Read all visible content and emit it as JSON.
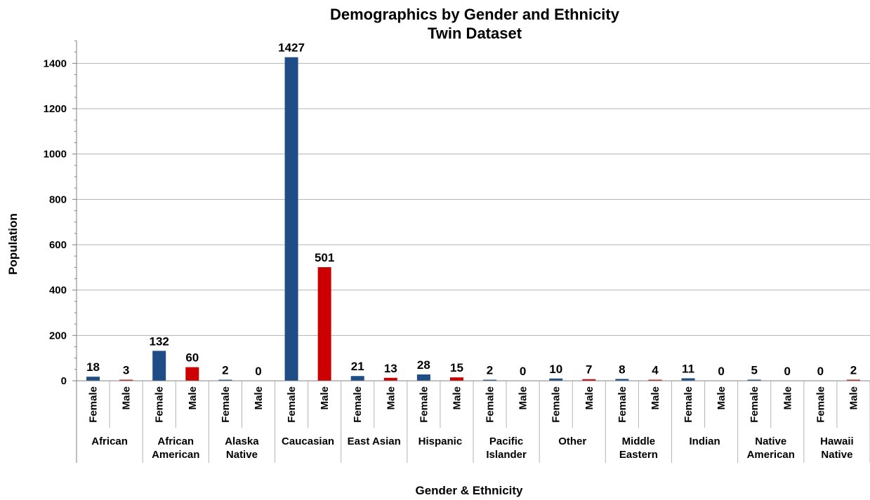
{
  "chart_data": {
    "type": "bar",
    "title": "Demographics by Gender and Ethnicity",
    "subtitle": "Twin Dataset",
    "xlabel": "Gender & Ethnicity",
    "ylabel": "Population",
    "ylim": [
      0,
      1500
    ],
    "yticks": [
      0,
      200,
      400,
      600,
      800,
      1000,
      1200,
      1400
    ],
    "grid": true,
    "legend": "none",
    "colors": {
      "Female": "#1f4e86",
      "Male": "#cc0000"
    },
    "groups": [
      {
        "name": [
          "African"
        ],
        "bars": [
          {
            "label": "Female",
            "value": 18
          },
          {
            "label": "Male",
            "value": 3
          }
        ]
      },
      {
        "name": [
          "African",
          "American"
        ],
        "bars": [
          {
            "label": "Female",
            "value": 132
          },
          {
            "label": "Male",
            "value": 60
          }
        ]
      },
      {
        "name": [
          "Alaska",
          "Native"
        ],
        "bars": [
          {
            "label": "Female",
            "value": 2
          },
          {
            "label": "Male",
            "value": 0
          }
        ]
      },
      {
        "name": [
          "Caucasian"
        ],
        "bars": [
          {
            "label": "Female",
            "value": 1427
          },
          {
            "label": "Male",
            "value": 501
          }
        ]
      },
      {
        "name": [
          "East Asian"
        ],
        "bars": [
          {
            "label": "Female",
            "value": 21
          },
          {
            "label": "Male",
            "value": 13
          }
        ]
      },
      {
        "name": [
          "Hispanic"
        ],
        "bars": [
          {
            "label": "Female",
            "value": 28
          },
          {
            "label": "Male",
            "value": 15
          }
        ]
      },
      {
        "name": [
          "Pacific",
          "Islander"
        ],
        "bars": [
          {
            "label": "Female",
            "value": 2
          },
          {
            "label": "Male",
            "value": 0
          }
        ]
      },
      {
        "name": [
          "Other"
        ],
        "bars": [
          {
            "label": "Female",
            "value": 10
          },
          {
            "label": "Male",
            "value": 7
          }
        ]
      },
      {
        "name": [
          "Middle",
          "Eastern"
        ],
        "bars": [
          {
            "label": "Female",
            "value": 8
          },
          {
            "label": "Male",
            "value": 4
          }
        ]
      },
      {
        "name": [
          "Indian"
        ],
        "bars": [
          {
            "label": "Female",
            "value": 11
          },
          {
            "label": "Male",
            "value": 0
          }
        ]
      },
      {
        "name": [
          "Native",
          "American"
        ],
        "bars": [
          {
            "label": "Female",
            "value": 5
          },
          {
            "label": "Male",
            "value": 0
          }
        ]
      },
      {
        "name": [
          "Hawaii",
          "Native"
        ],
        "bars": [
          {
            "label": "Female",
            "value": 0
          },
          {
            "label": "Male",
            "value": 2
          }
        ]
      }
    ]
  }
}
